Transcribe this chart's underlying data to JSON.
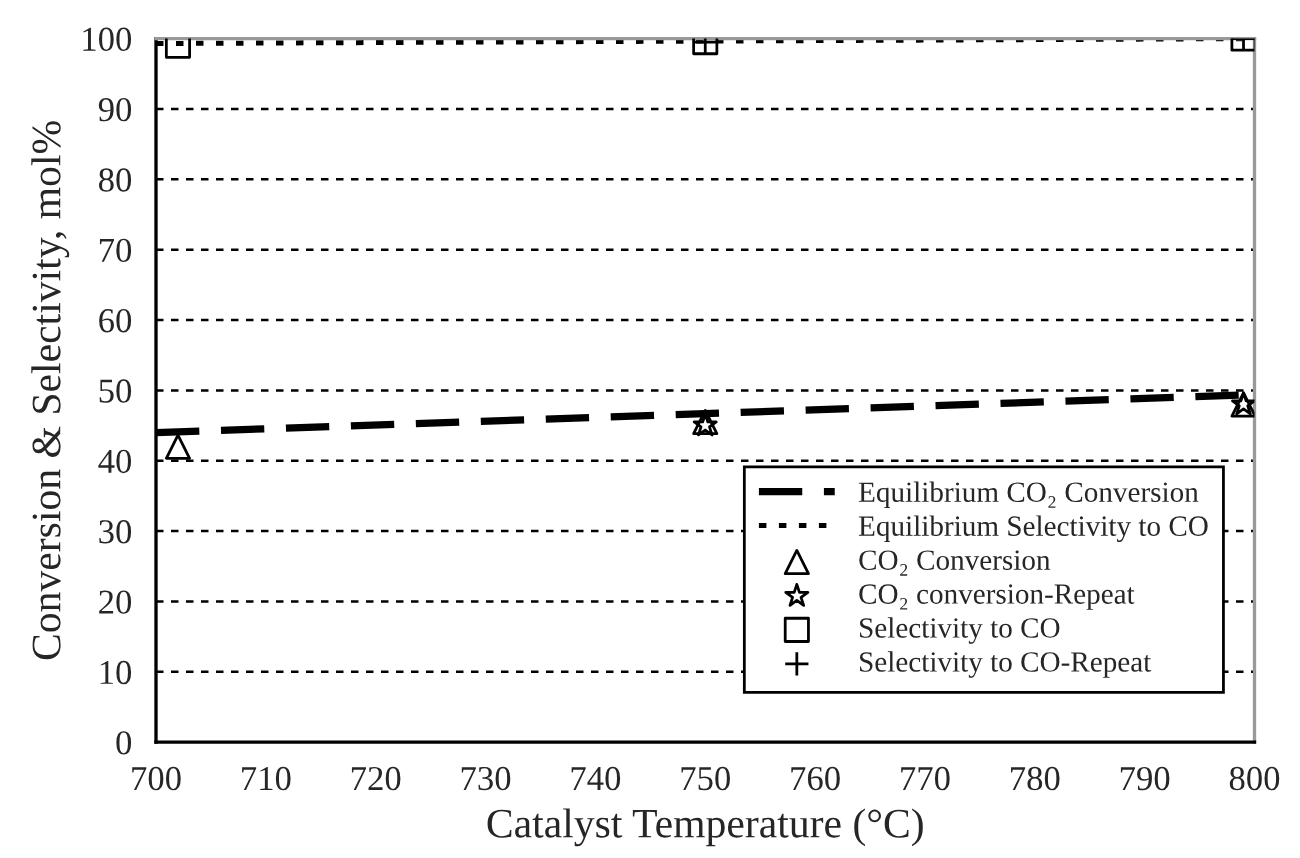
{
  "chart_data": {
    "type": "scatter",
    "xlabel": "Catalyst Temperature (°C)",
    "ylabel": "Conversion & Selectivity, mol%",
    "xlim": [
      700,
      800
    ],
    "xticks": [
      700,
      710,
      720,
      730,
      740,
      750,
      760,
      770,
      780,
      790,
      800
    ],
    "ylim": [
      0,
      100
    ],
    "yticks": [
      0,
      10,
      20,
      30,
      40,
      50,
      60,
      70,
      80,
      90,
      100
    ],
    "grid": "y",
    "legend": "bottom right",
    "series": [
      {
        "name": "Equilibrium CO₂ Conversion",
        "type": "line",
        "line_style": "dashed",
        "marker": "none",
        "color": "#000000",
        "x": [
          700,
          800
        ],
        "values": [
          44,
          49.4
        ]
      },
      {
        "name": "Equilibrium Selectivity to CO",
        "type": "line",
        "line_style": "dotted",
        "marker": "none",
        "color": "#000000",
        "x": [
          700,
          800
        ],
        "values": [
          99.3,
          100
        ]
      },
      {
        "name": "CO₂ Conversion",
        "marker": "triangle",
        "color": "#000000",
        "x": [
          702,
          750,
          799
        ],
        "values": [
          42,
          45.5,
          48
        ]
      },
      {
        "name": "CO₂ conversion-Repeat",
        "marker": "star",
        "color": "#000000",
        "x": [
          750,
          799
        ],
        "values": [
          45,
          48
        ]
      },
      {
        "name": "Selectivity to CO",
        "marker": "square",
        "color": "#000000",
        "x": [
          702,
          750,
          799
        ],
        "values": [
          99,
          99.5,
          100
        ]
      },
      {
        "name": "Selectivity to CO-Repeat",
        "marker": "cross",
        "color": "#000000",
        "x": [
          750,
          799
        ],
        "values": [
          99.5,
          100
        ]
      }
    ]
  }
}
